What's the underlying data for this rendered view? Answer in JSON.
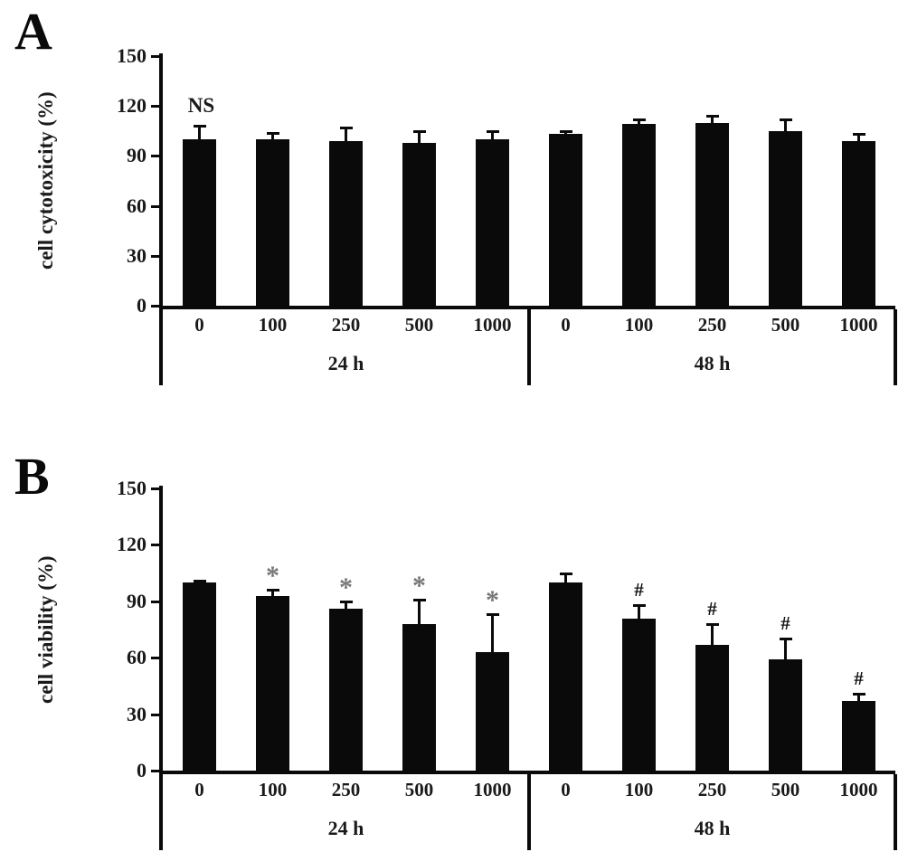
{
  "chart_data": [
    {
      "type": "bar",
      "panel_label": "A",
      "title": "",
      "xlabel": "",
      "ylabel": "cell cytotoxicity (%)",
      "ylim": [
        0,
        150
      ],
      "yticks": [
        0,
        30,
        60,
        90,
        120,
        150
      ],
      "grid": false,
      "legend": "none",
      "annotation": "NS",
      "categories": [
        "0",
        "100",
        "250",
        "500",
        "1000"
      ],
      "groups": [
        {
          "label": "24 h",
          "values": [
            100,
            100,
            99,
            98,
            100
          ],
          "errors": [
            8,
            4,
            8,
            7,
            5
          ],
          "sig": [
            "",
            "",
            "",
            "",
            ""
          ]
        },
        {
          "label": "48 h",
          "values": [
            103,
            109,
            110,
            105,
            99
          ],
          "errors": [
            2,
            3,
            4,
            7,
            4
          ],
          "sig": [
            "",
            "",
            "",
            "",
            ""
          ]
        }
      ],
      "bar_color": "#0a0a0a",
      "sig_star_color": "#777777",
      "sig_hash_color": "#111111"
    },
    {
      "type": "bar",
      "panel_label": "B",
      "title": "",
      "xlabel": "",
      "ylabel": "cell viability (%)",
      "ylim": [
        0,
        150
      ],
      "yticks": [
        0,
        30,
        60,
        90,
        120,
        150
      ],
      "grid": false,
      "legend": "none",
      "annotation": "",
      "categories": [
        "0",
        "100",
        "250",
        "500",
        "1000"
      ],
      "groups": [
        {
          "label": "24 h",
          "values": [
            100,
            93,
            86,
            78,
            63
          ],
          "errors": [
            1,
            3,
            4,
            13,
            20
          ],
          "sig": [
            "",
            "*",
            "*",
            "*",
            "*"
          ]
        },
        {
          "label": "48 h",
          "values": [
            100,
            81,
            67,
            59,
            37
          ],
          "errors": [
            5,
            7,
            11,
            11,
            4
          ],
          "sig": [
            "",
            "#",
            "#",
            "#",
            "#"
          ]
        }
      ],
      "bar_color": "#0a0a0a",
      "sig_star_color": "#777777",
      "sig_hash_color": "#111111"
    }
  ]
}
